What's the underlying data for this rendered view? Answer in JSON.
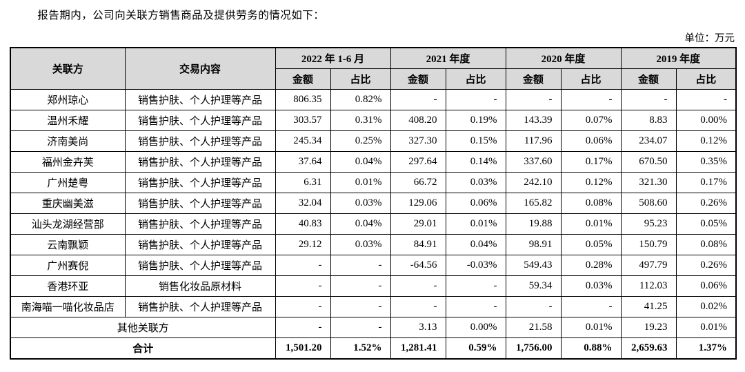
{
  "page": {
    "intro": "报告期内，公司向关联方销售商品及提供劳务的情况如下：",
    "unit_label": "单位：万元"
  },
  "table": {
    "header": {
      "related_party": "关联方",
      "transaction": "交易内容",
      "periods": [
        "2022 年 1-6 月",
        "2021 年度",
        "2020 年度",
        "2019 年度"
      ],
      "amount": "金额",
      "ratio": "占比"
    },
    "rows": [
      {
        "party": "郑州琼心",
        "content": "销售护肤、个人护理等产品",
        "values": [
          "806.35",
          "0.82%",
          "-",
          "-",
          "-",
          "-",
          "-",
          "-"
        ]
      },
      {
        "party": "温州禾耀",
        "content": "销售护肤、个人护理等产品",
        "values": [
          "303.57",
          "0.31%",
          "408.20",
          "0.19%",
          "143.39",
          "0.07%",
          "8.83",
          "0.00%"
        ]
      },
      {
        "party": "济南美尚",
        "content": "销售护肤、个人护理等产品",
        "values": [
          "245.34",
          "0.25%",
          "327.30",
          "0.15%",
          "117.96",
          "0.06%",
          "234.07",
          "0.12%"
        ]
      },
      {
        "party": "福州金卉芙",
        "content": "销售护肤、个人护理等产品",
        "values": [
          "37.64",
          "0.04%",
          "297.64",
          "0.14%",
          "337.60",
          "0.17%",
          "670.50",
          "0.35%"
        ]
      },
      {
        "party": "广州楚粤",
        "content": "销售护肤、个人护理等产品",
        "values": [
          "6.31",
          "0.01%",
          "66.72",
          "0.03%",
          "242.10",
          "0.12%",
          "321.30",
          "0.17%"
        ]
      },
      {
        "party": "重庆幽美滋",
        "content": "销售护肤、个人护理等产品",
        "values": [
          "32.04",
          "0.03%",
          "129.06",
          "0.06%",
          "165.82",
          "0.08%",
          "508.60",
          "0.26%"
        ]
      },
      {
        "party": "汕头龙湖经营部",
        "content": "销售护肤、个人护理等产品",
        "values": [
          "40.83",
          "0.04%",
          "29.01",
          "0.01%",
          "19.88",
          "0.01%",
          "95.23",
          "0.05%"
        ]
      },
      {
        "party": "云南飘颖",
        "content": "销售护肤、个人护理等产品",
        "values": [
          "29.12",
          "0.03%",
          "84.91",
          "0.04%",
          "98.91",
          "0.05%",
          "150.79",
          "0.08%"
        ]
      },
      {
        "party": "广州赛倪",
        "content": "销售护肤、个人护理等产品",
        "values": [
          "-",
          "-",
          "-64.56",
          "-0.03%",
          "549.43",
          "0.28%",
          "497.79",
          "0.26%"
        ]
      },
      {
        "party": "香港环亚",
        "content": "销售化妆品原材料",
        "values": [
          "-",
          "-",
          "-",
          "-",
          "59.34",
          "0.03%",
          "112.03",
          "0.06%"
        ]
      },
      {
        "party": "南海喵一喵化妆品店",
        "content": "销售护肤、个人护理等产品",
        "values": [
          "-",
          "-",
          "-",
          "-",
          "-",
          "-",
          "41.25",
          "0.02%"
        ]
      }
    ],
    "other_row": {
      "label": "其他关联方",
      "values": [
        "-",
        "-",
        "3.13",
        "0.00%",
        "21.58",
        "0.01%",
        "19.23",
        "0.01%"
      ]
    },
    "total_row": {
      "label": "合计",
      "values": [
        "1,501.20",
        "1.52%",
        "1,281.41",
        "0.59%",
        "1,756.00",
        "0.88%",
        "2,659.63",
        "1.37%"
      ]
    }
  },
  "colors": {
    "header_bg": "#d9d9d9",
    "border": "#000000",
    "text": "#000000"
  }
}
